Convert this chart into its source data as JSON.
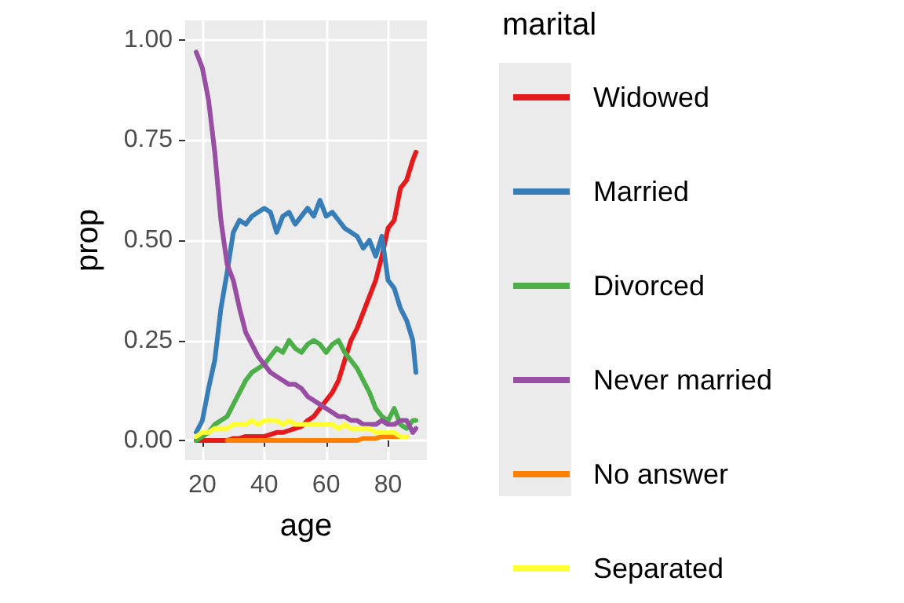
{
  "chart_data": {
    "type": "line",
    "xlabel": "age",
    "ylabel": "prop",
    "legend_title": "marital",
    "legend": "right",
    "grid": true,
    "marker": "none",
    "line_style": "solid",
    "x": [
      18,
      20,
      22,
      24,
      26,
      28,
      30,
      32,
      34,
      36,
      38,
      40,
      42,
      44,
      46,
      48,
      50,
      52,
      54,
      56,
      58,
      60,
      62,
      64,
      66,
      68,
      70,
      72,
      74,
      76,
      78,
      80,
      82,
      84,
      86,
      88,
      89
    ],
    "xlim": [
      14.45,
      92.55
    ],
    "xticks": [
      20,
      40,
      60,
      80
    ],
    "ylim": [
      -0.049,
      1.049
    ],
    "yticks": [
      {
        "value": 0,
        "label": "0.00"
      },
      {
        "value": 0.25,
        "label": "0.25"
      },
      {
        "value": 0.5,
        "label": "0.50"
      },
      {
        "value": 0.75,
        "label": "0.75"
      },
      {
        "value": 1,
        "label": "1.00"
      }
    ],
    "series": [
      {
        "name": "Widowed",
        "color": "#e41a1c",
        "values": [
          0,
          0,
          0,
          0,
          0,
          0,
          0.005,
          0.005,
          0.01,
          0.01,
          0.01,
          0.01,
          0.015,
          0.02,
          0.02,
          0.025,
          0.03,
          0.035,
          0.05,
          0.06,
          0.08,
          0.1,
          0.12,
          0.15,
          0.2,
          0.25,
          0.28,
          0.32,
          0.36,
          0.4,
          0.46,
          0.53,
          0.55,
          0.63,
          0.65,
          0.7,
          0.72
        ]
      },
      {
        "name": "Married",
        "color": "#377eb8",
        "values": [
          0.02,
          0.05,
          0.13,
          0.2,
          0.33,
          0.42,
          0.52,
          0.55,
          0.54,
          0.56,
          0.57,
          0.58,
          0.57,
          0.52,
          0.56,
          0.57,
          0.54,
          0.56,
          0.58,
          0.56,
          0.6,
          0.56,
          0.57,
          0.55,
          0.53,
          0.52,
          0.51,
          0.48,
          0.5,
          0.46,
          0.51,
          0.4,
          0.38,
          0.33,
          0.3,
          0.25,
          0.17
        ]
      },
      {
        "name": "Divorced",
        "color": "#4daf4a",
        "values": [
          0,
          0.01,
          0.02,
          0.04,
          0.05,
          0.06,
          0.09,
          0.12,
          0.15,
          0.17,
          0.18,
          0.19,
          0.21,
          0.23,
          0.22,
          0.25,
          0.23,
          0.22,
          0.24,
          0.25,
          0.24,
          0.22,
          0.24,
          0.25,
          0.22,
          0.2,
          0.18,
          0.15,
          0.12,
          0.08,
          0.06,
          0.05,
          0.08,
          0.04,
          0.03,
          0.05,
          0.05
        ]
      },
      {
        "name": "Never married",
        "color": "#984ea3",
        "values": [
          0.97,
          0.93,
          0.85,
          0.72,
          0.55,
          0.44,
          0.4,
          0.33,
          0.27,
          0.24,
          0.21,
          0.19,
          0.17,
          0.16,
          0.15,
          0.14,
          0.14,
          0.13,
          0.11,
          0.1,
          0.09,
          0.08,
          0.07,
          0.06,
          0.06,
          0.05,
          0.05,
          0.04,
          0.04,
          0.04,
          0.05,
          0.04,
          0.04,
          0.05,
          0.05,
          0.02,
          0.03
        ]
      },
      {
        "name": "No answer",
        "color": "#ff7f00",
        "values": [
          null,
          null,
          null,
          null,
          null,
          0,
          0,
          0,
          0,
          0,
          0,
          0,
          0,
          0,
          0,
          0,
          0,
          0,
          0,
          0,
          0,
          0,
          0,
          0,
          0,
          0,
          0,
          0.005,
          0.005,
          0.005,
          0.01,
          0.01,
          0.01,
          0.01,
          0.01,
          null,
          null
        ]
      },
      {
        "name": "Separated",
        "color": "#ffff33",
        "values": [
          0.01,
          0.02,
          0.02,
          0.03,
          0.03,
          0.03,
          0.04,
          0.04,
          0.04,
          0.05,
          0.04,
          0.05,
          0.05,
          0.05,
          0.04,
          0.05,
          0.04,
          0.04,
          0.04,
          0.04,
          0.04,
          0.04,
          0.04,
          0.03,
          0.04,
          0.03,
          0.03,
          0.03,
          0.03,
          0.02,
          0.02,
          0.02,
          0.02,
          0.01,
          0.01,
          null,
          null
        ]
      }
    ]
  }
}
